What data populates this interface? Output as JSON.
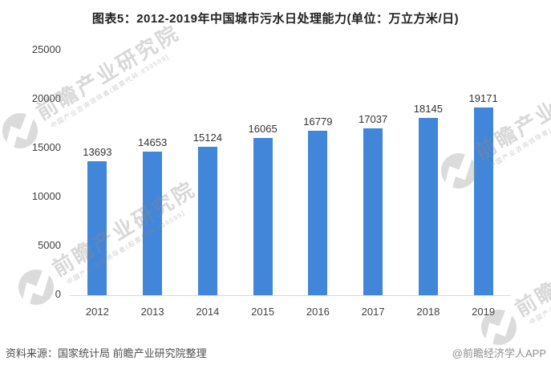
{
  "title": "图表5：2012-2019年中国城市污水日处理能力(单位：万立方米/日)",
  "chart_data": {
    "type": "bar",
    "title": "图表5：2012-2019年中国城市污水日处理能力(单位：万立方米/日)",
    "categories": [
      "2012",
      "2013",
      "2014",
      "2015",
      "2016",
      "2017",
      "2018",
      "2019"
    ],
    "values": [
      13693,
      14653,
      15124,
      16065,
      16779,
      17037,
      18145,
      19171
    ],
    "xlabel": "",
    "ylabel": "",
    "unit": "万立方米/日",
    "ylim": [
      0,
      25000
    ],
    "yticks": [
      0,
      5000,
      10000,
      15000,
      20000,
      25000
    ],
    "bar_color": "#4286d9",
    "grid": "off",
    "legend": "none"
  },
  "footer": {
    "source": "资料来源：国家统计局 前瞻产业研究院整理",
    "credit": "@前瞻经济学人APP"
  },
  "watermark": {
    "brand": "前瞻产业研究院",
    "tagline": "中国产业咨询领导者(股票代码:839599)"
  },
  "colors": {
    "bar": "#4286d9",
    "axis_line": "#d9d9d9",
    "title_text": "#212121",
    "tick_text": "#404040",
    "source_text": "#4d4d4d",
    "credit_text": "#8e8e8e"
  }
}
